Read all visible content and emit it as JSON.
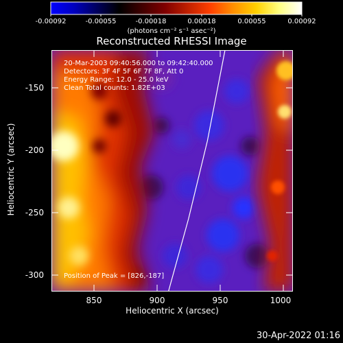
{
  "colorbar": {
    "tick_labels": [
      "-0.00092",
      "-0.00055",
      "-0.00018",
      "0.00018",
      "0.00055",
      "0.00092"
    ],
    "units": "(photons cm⁻² s⁻¹ asec⁻²)",
    "stops": [
      "#0000ff",
      "#0000c0",
      "#000060",
      "#000000",
      "#400000",
      "#800000",
      "#c02000",
      "#ff4000",
      "#ff9000",
      "#ffd000",
      "#ffff80",
      "#ffffff"
    ]
  },
  "plot": {
    "title": "Reconstructed RHESSI Image",
    "x_label": "Heliocentric X (arcsec)",
    "y_label": "Heliocentric Y (arcsec)",
    "x_ticks": [
      "850",
      "900",
      "950",
      "1000"
    ],
    "y_ticks": [
      "-150",
      "-200",
      "-250",
      "-300"
    ],
    "x_range": [
      816,
      1008
    ],
    "y_range": [
      -311,
      -125
    ],
    "limb_curve": [
      [
        909,
        -311
      ],
      [
        925,
        -255
      ],
      [
        940,
        -195
      ],
      [
        954,
        -125
      ]
    ]
  },
  "info": {
    "time_range": "20-Mar-2003 09:40:56.000 to 09:42:40.000",
    "detectors": "Detectors: 3F 4F 5F 6F 7F 8F, Att 0",
    "energy_range": "Energy Range: 12.0 - 25.0 keV",
    "clean": "Clean    Total counts: 1.82E+03",
    "peak": "Position of Peak = [826,-187]"
  },
  "timestamp": "30-Apr-2022 01:16"
}
